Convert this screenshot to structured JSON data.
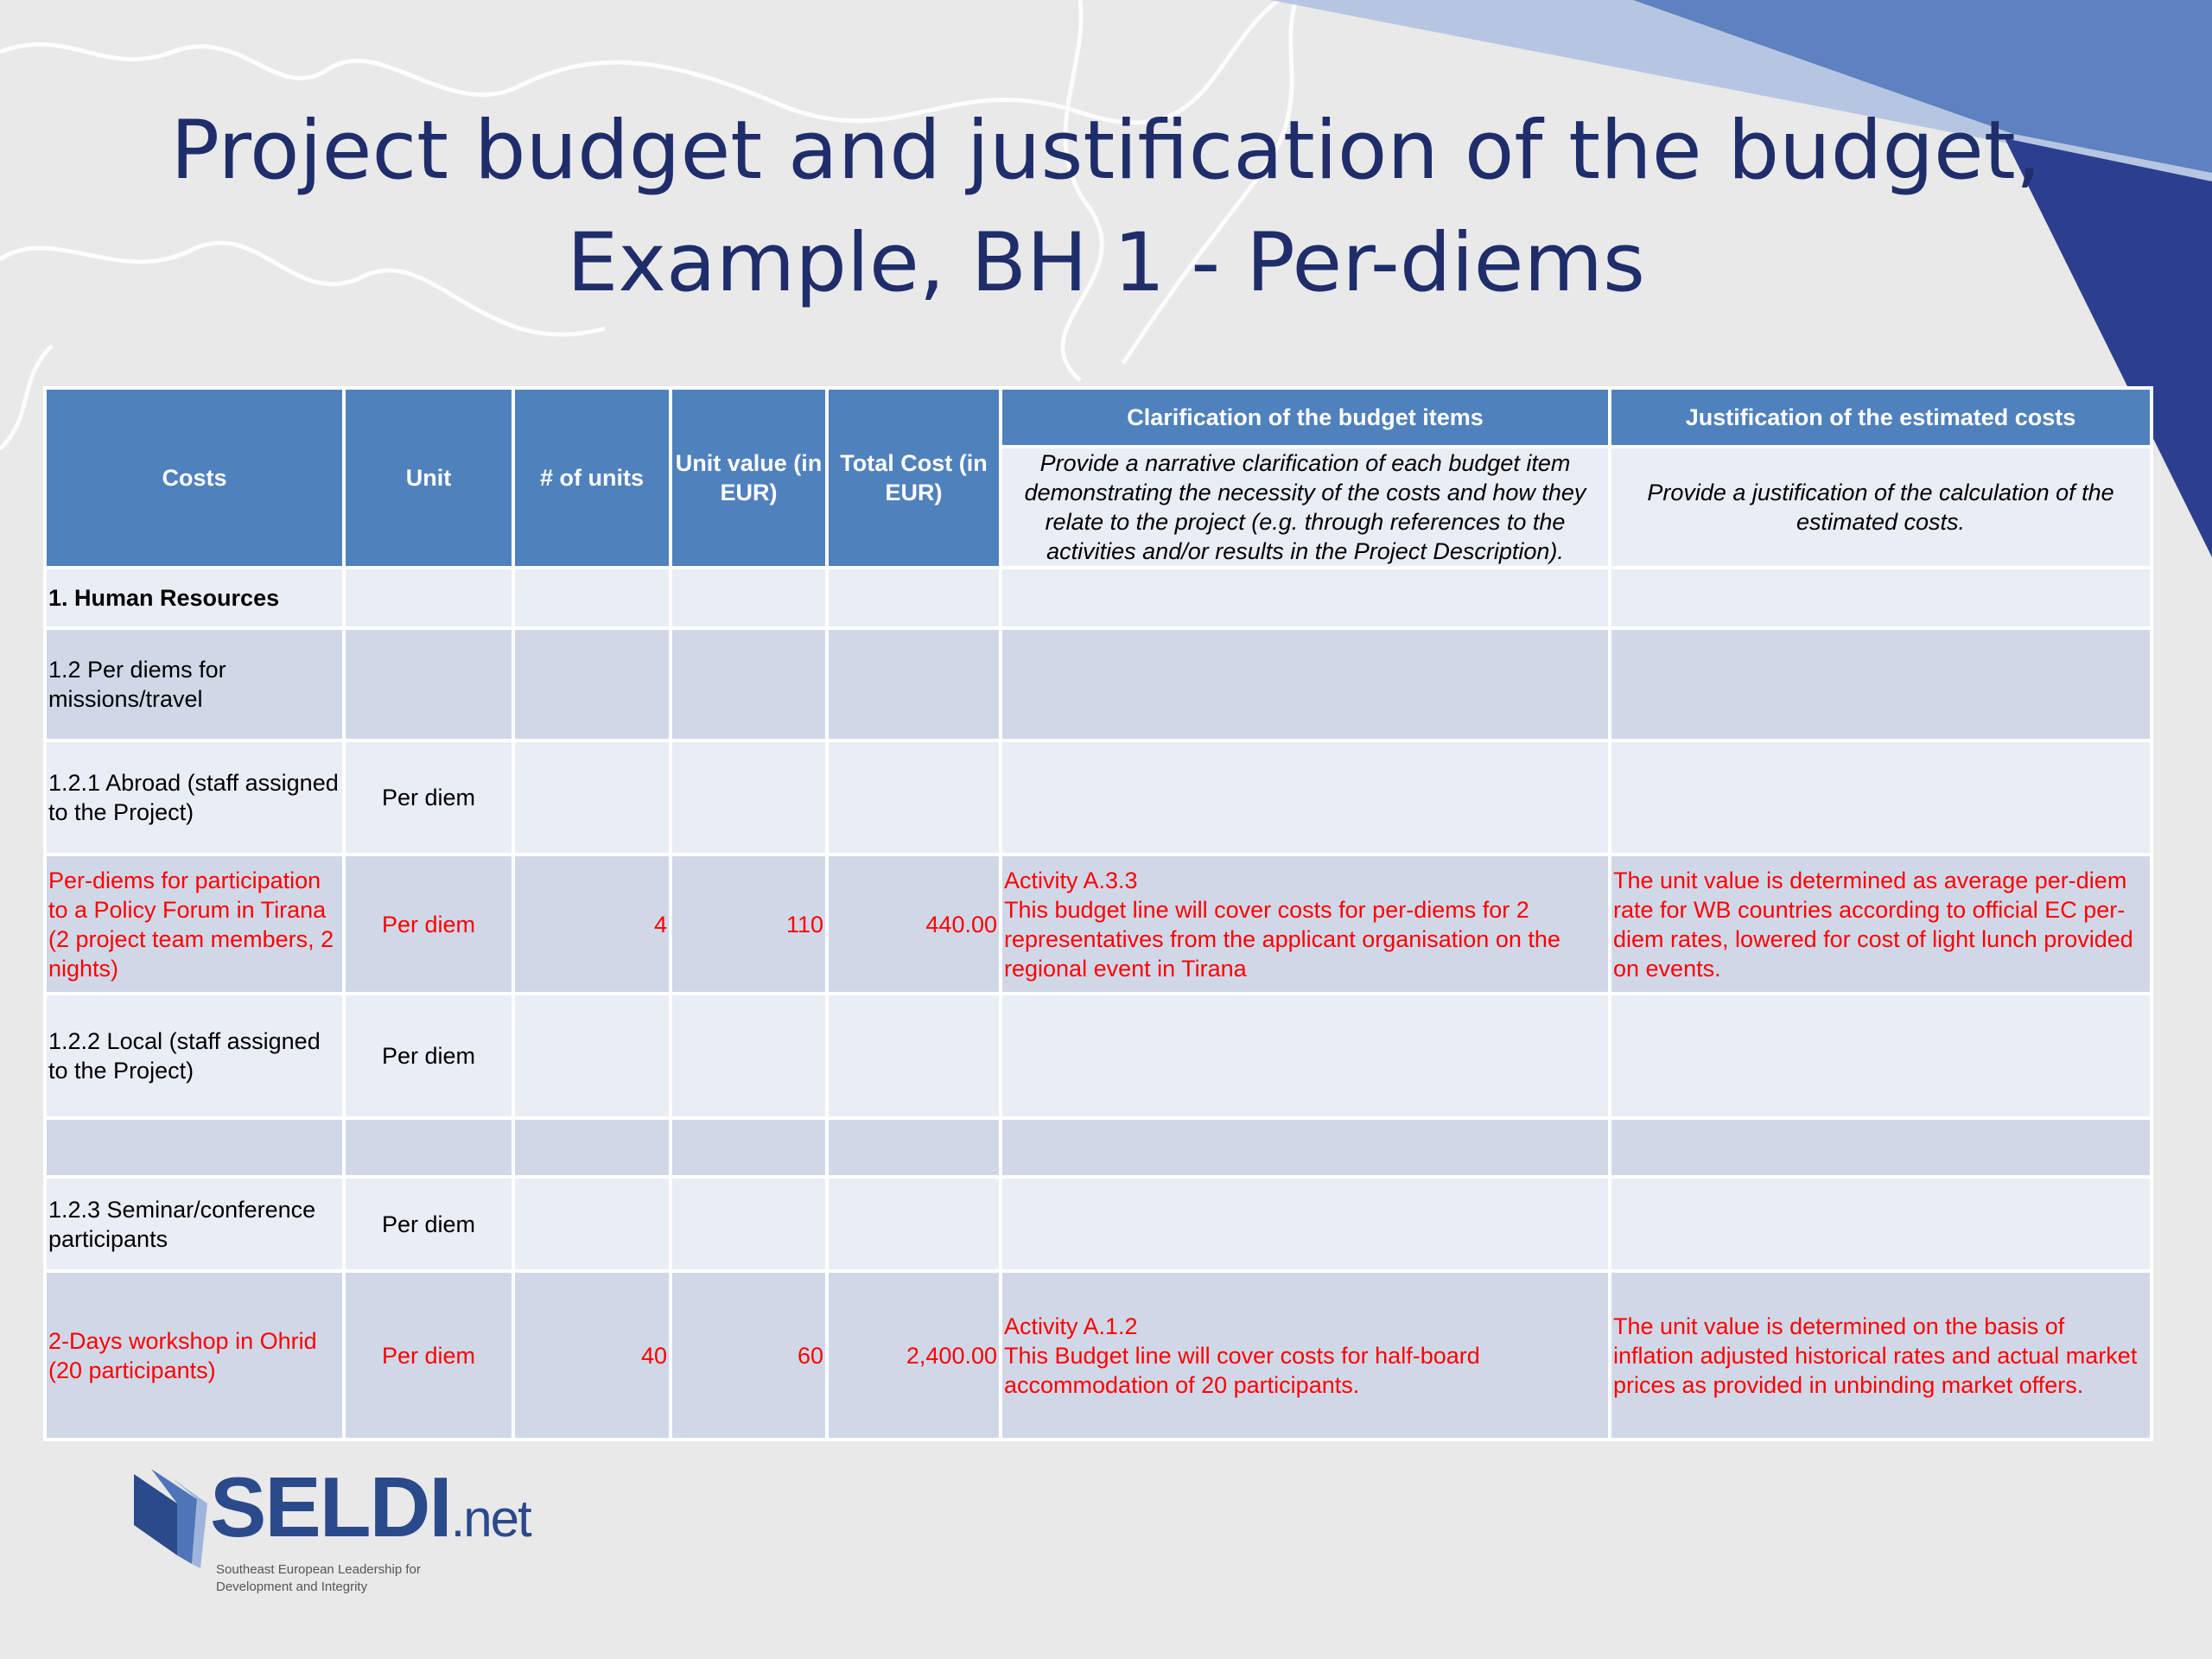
{
  "header": {
    "title_lines": [
      "Project budget and justification of the budget,",
      "Example, BH 1 - Per-diems"
    ]
  },
  "table": {
    "columns": [
      "Costs",
      "Unit",
      "# of units",
      "Unit value (in EUR)",
      "Total Cost (in EUR)",
      "Clarification of the budget items",
      "Justification of the estimated costs"
    ],
    "column_notes": [
      "Provide a narrative clarification of each budget item demonstrating the necessity of the costs and how they relate to the project (e.g. through references to the activities and/or results in the Project Description).",
      "Provide a justification of the calculation of the estimated costs."
    ],
    "header_color": "#4f81bd",
    "rows": [
      {
        "cells": [
          "1. Human Resources",
          null,
          null,
          null,
          null,
          null,
          null
        ],
        "bold": true
      },
      {
        "cells": [
          "1.2 Per diems for missions/travel",
          null,
          null,
          null,
          null,
          null,
          null
        ]
      },
      {
        "cells": [
          "1.2.1 Abroad (staff assigned to the Project)",
          "Per diem",
          null,
          null,
          null,
          null,
          null
        ]
      },
      {
        "cells": [
          "Per-diems for participation to a Policy Forum in Tirana (2 project team members, 2 nights)",
          "Per diem",
          "4",
          "110",
          "440.00",
          "Activity A.3.3\nThis budget line will cover costs for per-diems for 2 representatives from the applicant organisation on the regional event in Tirana",
          "The unit value is determined as average per-diem rate for WB countries according to official EC per-diem rates, lowered for cost of light lunch provided on events."
        ],
        "color": "#ff0000"
      },
      {
        "cells": [
          "1.2.2 Local (staff assigned to the Project)",
          "Per diem",
          null,
          null,
          null,
          null,
          null
        ]
      },
      {
        "cells": [
          null,
          null,
          null,
          null,
          null,
          null,
          null
        ]
      },
      {
        "cells": [
          "1.2.3 Seminar/conference participants",
          "Per diem",
          null,
          null,
          null,
          null,
          null
        ]
      },
      {
        "cells": [
          "2-Days workshop in Ohrid (20 participants)",
          "Per diem",
          "40",
          "60",
          "2,400.00",
          "Activity A.1.2\nThis Budget line will cover costs for half-board accommodation of 20 participants.",
          "The unit value is determined on the basis of inflation adjusted historical rates and actual market prices as provided in unbinding market offers."
        ],
        "color": "#ff0000"
      }
    ]
  },
  "logo": {
    "name": "SELDI",
    "suffix": ".net",
    "tagline_lines": [
      "Southeast European Leadership for",
      "Development and Integrity"
    ]
  }
}
